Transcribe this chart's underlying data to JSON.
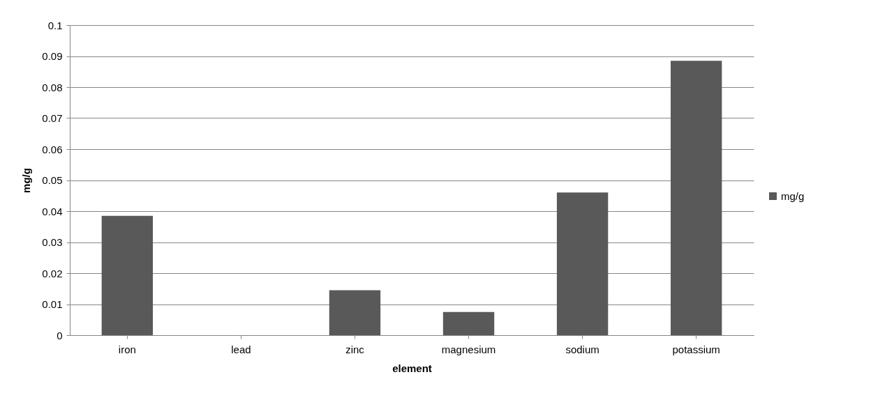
{
  "chart_data": {
    "type": "bar",
    "xlabel": "element",
    "ylabel": "mg/g",
    "categories": [
      "iron",
      "lead",
      "zinc",
      "magnesium",
      "sodium",
      "potassium"
    ],
    "series": [
      {
        "name": "mg/g",
        "color": "#595959",
        "values": [
          0.0385,
          0,
          0.0145,
          0.0075,
          0.046,
          0.0885
        ]
      }
    ],
    "ylim": [
      0,
      0.1
    ],
    "yticks": [
      0,
      0.01,
      0.02,
      0.03,
      0.04,
      0.05,
      0.06,
      0.07,
      0.08,
      0.09,
      0.1
    ],
    "grid": "y",
    "legend": "right"
  }
}
